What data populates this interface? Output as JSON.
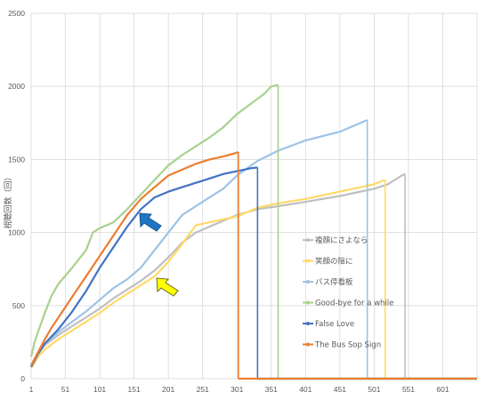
{
  "chart_data": {
    "type": "line",
    "title": "",
    "xlabel": "",
    "ylabel": "視聴回数（回）",
    "xlim": [
      1,
      651
    ],
    "ylim": [
      0,
      2500
    ],
    "x_ticks": [
      1,
      51,
      101,
      151,
      201,
      251,
      301,
      351,
      401,
      451,
      501,
      551,
      601
    ],
    "y_ticks": [
      0,
      500,
      1000,
      1500,
      2000,
      2500
    ],
    "grid": "vertical-and-horizontal",
    "legend_position": "center-right",
    "colors": {
      "grid": "#d9d9d9",
      "axis_text": "#595959",
      "arrow_blue": "#1f77c4",
      "arrow_yellow": "#ffff00"
    },
    "series": [
      {
        "name": "複顔にさよなら",
        "color": "#bfbfbf",
        "points": [
          [
            1,
            80
          ],
          [
            11,
            170
          ],
          [
            21,
            230
          ],
          [
            41,
            300
          ],
          [
            61,
            360
          ],
          [
            81,
            420
          ],
          [
            101,
            480
          ],
          [
            121,
            550
          ],
          [
            141,
            610
          ],
          [
            161,
            670
          ],
          [
            181,
            740
          ],
          [
            201,
            830
          ],
          [
            221,
            930
          ],
          [
            241,
            1000
          ],
          [
            261,
            1040
          ],
          [
            281,
            1080
          ],
          [
            301,
            1120
          ],
          [
            331,
            1160
          ],
          [
            361,
            1180
          ],
          [
            401,
            1210
          ],
          [
            451,
            1250
          ],
          [
            501,
            1300
          ],
          [
            521,
            1330
          ],
          [
            541,
            1390
          ],
          [
            546,
            1400
          ]
        ],
        "end_x": 546
      },
      {
        "name": "笑顔の陰に",
        "color": "#ffd966",
        "points": [
          [
            1,
            70
          ],
          [
            11,
            150
          ],
          [
            21,
            200
          ],
          [
            41,
            270
          ],
          [
            61,
            330
          ],
          [
            81,
            390
          ],
          [
            101,
            450
          ],
          [
            121,
            520
          ],
          [
            141,
            580
          ],
          [
            161,
            640
          ],
          [
            181,
            700
          ],
          [
            201,
            800
          ],
          [
            221,
            920
          ],
          [
            241,
            1050
          ],
          [
            261,
            1070
          ],
          [
            281,
            1090
          ],
          [
            301,
            1110
          ],
          [
            331,
            1170
          ],
          [
            361,
            1200
          ],
          [
            401,
            1230
          ],
          [
            451,
            1280
          ],
          [
            501,
            1330
          ],
          [
            511,
            1350
          ],
          [
            517,
            1360
          ]
        ],
        "end_x": 517
      },
      {
        "name": "バス停看板",
        "color": "#9dc3e6",
        "points": [
          [
            1,
            90
          ],
          [
            11,
            180
          ],
          [
            21,
            240
          ],
          [
            41,
            320
          ],
          [
            61,
            390
          ],
          [
            81,
            460
          ],
          [
            101,
            540
          ],
          [
            121,
            620
          ],
          [
            141,
            680
          ],
          [
            161,
            760
          ],
          [
            181,
            880
          ],
          [
            201,
            1000
          ],
          [
            221,
            1120
          ],
          [
            241,
            1180
          ],
          [
            261,
            1240
          ],
          [
            281,
            1300
          ],
          [
            301,
            1390
          ],
          [
            331,
            1490
          ],
          [
            361,
            1560
          ],
          [
            401,
            1630
          ],
          [
            451,
            1690
          ],
          [
            481,
            1750
          ],
          [
            491,
            1770
          ]
        ],
        "end_x": 491
      },
      {
        "name": "Good-bye for a while",
        "color": "#a9d18e",
        "points": [
          [
            1,
            150
          ],
          [
            6,
            250
          ],
          [
            11,
            320
          ],
          [
            21,
            450
          ],
          [
            31,
            570
          ],
          [
            41,
            650
          ],
          [
            61,
            760
          ],
          [
            81,
            880
          ],
          [
            91,
            1000
          ],
          [
            101,
            1030
          ],
          [
            121,
            1070
          ],
          [
            141,
            1160
          ],
          [
            161,
            1260
          ],
          [
            181,
            1360
          ],
          [
            201,
            1460
          ],
          [
            221,
            1530
          ],
          [
            241,
            1590
          ],
          [
            261,
            1650
          ],
          [
            281,
            1720
          ],
          [
            301,
            1810
          ],
          [
            321,
            1880
          ],
          [
            341,
            1950
          ],
          [
            351,
            2000
          ],
          [
            361,
            2010
          ]
        ],
        "end_x": 361
      },
      {
        "name": "False Love",
        "color": "#4472c4",
        "points": [
          [
            1,
            80
          ],
          [
            11,
            170
          ],
          [
            21,
            240
          ],
          [
            41,
            340
          ],
          [
            61,
            460
          ],
          [
            81,
            600
          ],
          [
            101,
            760
          ],
          [
            121,
            900
          ],
          [
            141,
            1040
          ],
          [
            161,
            1160
          ],
          [
            181,
            1240
          ],
          [
            201,
            1280
          ],
          [
            221,
            1310
          ],
          [
            241,
            1340
          ],
          [
            261,
            1370
          ],
          [
            281,
            1400
          ],
          [
            301,
            1420
          ],
          [
            321,
            1440
          ],
          [
            331,
            1445
          ]
        ],
        "end_x": 331
      },
      {
        "name": "The Bus Sop Sign",
        "color": "#ed7d31",
        "points": [
          [
            1,
            90
          ],
          [
            11,
            180
          ],
          [
            21,
            270
          ],
          [
            31,
            350
          ],
          [
            41,
            420
          ],
          [
            61,
            560
          ],
          [
            81,
            700
          ],
          [
            101,
            840
          ],
          [
            121,
            980
          ],
          [
            141,
            1120
          ],
          [
            161,
            1230
          ],
          [
            181,
            1310
          ],
          [
            201,
            1390
          ],
          [
            221,
            1430
          ],
          [
            241,
            1470
          ],
          [
            261,
            1500
          ],
          [
            281,
            1520
          ],
          [
            296,
            1540
          ],
          [
            303,
            1550
          ]
        ],
        "end_x": 303
      }
    ]
  }
}
